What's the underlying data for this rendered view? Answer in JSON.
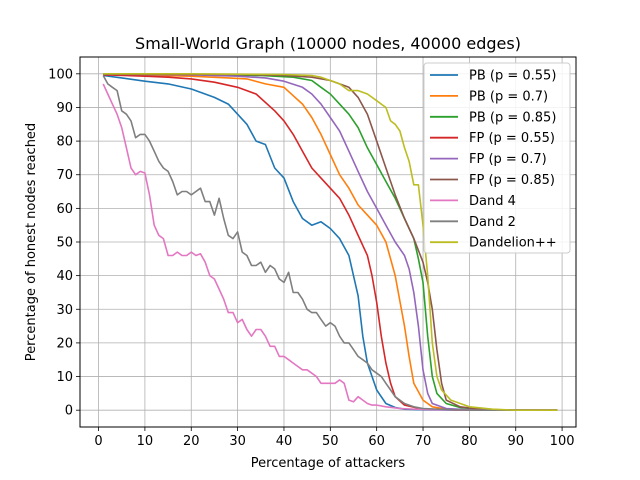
{
  "chart_data": {
    "type": "line",
    "title": "Small-World Graph (10000 nodes, 40000 edges)",
    "xlabel": "Percentage of attackers",
    "ylabel": "Percentage of honest nodes reached",
    "xlim": [
      -4,
      103
    ],
    "ylim": [
      -5,
      105
    ],
    "xticks": [
      0,
      10,
      20,
      30,
      40,
      50,
      60,
      70,
      80,
      90,
      100
    ],
    "yticks": [
      0,
      10,
      20,
      30,
      40,
      50,
      60,
      70,
      80,
      90,
      100
    ],
    "grid": true,
    "legend_position": "top-right",
    "series": [
      {
        "name": "PB (p = 0.55)",
        "color": "#1f77b4",
        "points": [
          [
            1,
            99.5
          ],
          [
            5,
            98.8
          ],
          [
            10,
            97.8
          ],
          [
            15,
            97
          ],
          [
            20,
            95.5
          ],
          [
            25,
            93
          ],
          [
            28,
            91
          ],
          [
            30,
            88
          ],
          [
            32,
            85
          ],
          [
            34,
            80
          ],
          [
            36,
            79
          ],
          [
            38,
            72
          ],
          [
            40,
            69
          ],
          [
            42,
            62
          ],
          [
            44,
            57
          ],
          [
            46,
            55
          ],
          [
            48,
            56
          ],
          [
            50,
            54
          ],
          [
            52,
            51
          ],
          [
            54,
            46
          ],
          [
            56,
            34
          ],
          [
            57,
            22
          ],
          [
            58,
            14
          ],
          [
            60,
            6
          ],
          [
            62,
            2
          ],
          [
            64,
            0.8
          ],
          [
            66,
            0.3
          ],
          [
            70,
            0.1
          ],
          [
            80,
            0
          ],
          [
            99,
            0
          ]
        ]
      },
      {
        "name": "PB (p = 0.7)",
        "color": "#ff7f0e",
        "points": [
          [
            1,
            99.8
          ],
          [
            10,
            99.6
          ],
          [
            20,
            99.3
          ],
          [
            28,
            98.8
          ],
          [
            32,
            98.5
          ],
          [
            36,
            97
          ],
          [
            40,
            96
          ],
          [
            42,
            93.5
          ],
          [
            44,
            91
          ],
          [
            46,
            87
          ],
          [
            48,
            82
          ],
          [
            50,
            76
          ],
          [
            52,
            70
          ],
          [
            54,
            66
          ],
          [
            56,
            61
          ],
          [
            58,
            58
          ],
          [
            60,
            55
          ],
          [
            62,
            50
          ],
          [
            64,
            40
          ],
          [
            66,
            25
          ],
          [
            67,
            16
          ],
          [
            68,
            8
          ],
          [
            70,
            3
          ],
          [
            72,
            1
          ],
          [
            75,
            0.3
          ],
          [
            80,
            0
          ],
          [
            99,
            0
          ]
        ]
      },
      {
        "name": "PB (p = 0.85)",
        "color": "#2ca02c",
        "points": [
          [
            1,
            99.9
          ],
          [
            20,
            99.8
          ],
          [
            35,
            99.5
          ],
          [
            42,
            99
          ],
          [
            46,
            98
          ],
          [
            48,
            96
          ],
          [
            50,
            94
          ],
          [
            52,
            91
          ],
          [
            54,
            88
          ],
          [
            56,
            84
          ],
          [
            58,
            78
          ],
          [
            60,
            73
          ],
          [
            62,
            68
          ],
          [
            64,
            63
          ],
          [
            66,
            57
          ],
          [
            68,
            51
          ],
          [
            69,
            45
          ],
          [
            70,
            38
          ],
          [
            71,
            22
          ],
          [
            72,
            10
          ],
          [
            73,
            5
          ],
          [
            75,
            2
          ],
          [
            78,
            0.8
          ],
          [
            82,
            0.2
          ],
          [
            90,
            0
          ],
          [
            99,
            0
          ]
        ]
      },
      {
        "name": "FP (p = 0.55)",
        "color": "#d62728",
        "points": [
          [
            1,
            99.7
          ],
          [
            10,
            99.3
          ],
          [
            15,
            99
          ],
          [
            20,
            98.5
          ],
          [
            25,
            97.5
          ],
          [
            30,
            96
          ],
          [
            34,
            94
          ],
          [
            38,
            89
          ],
          [
            40,
            86
          ],
          [
            42,
            82
          ],
          [
            44,
            77
          ],
          [
            46,
            72
          ],
          [
            48,
            69
          ],
          [
            50,
            66
          ],
          [
            52,
            63
          ],
          [
            54,
            58
          ],
          [
            56,
            52
          ],
          [
            58,
            46
          ],
          [
            59,
            40
          ],
          [
            60,
            32
          ],
          [
            61,
            22
          ],
          [
            62,
            14
          ],
          [
            63,
            8
          ],
          [
            64,
            4
          ],
          [
            66,
            1.5
          ],
          [
            70,
            0.3
          ],
          [
            80,
            0
          ],
          [
            99,
            0
          ]
        ]
      },
      {
        "name": "FP (p = 0.7)",
        "color": "#9467bd",
        "points": [
          [
            1,
            99.9
          ],
          [
            20,
            99.7
          ],
          [
            30,
            99.3
          ],
          [
            36,
            98.8
          ],
          [
            40,
            97.8
          ],
          [
            44,
            96
          ],
          [
            46,
            94
          ],
          [
            48,
            91
          ],
          [
            50,
            87
          ],
          [
            52,
            83
          ],
          [
            54,
            77
          ],
          [
            56,
            71
          ],
          [
            58,
            65
          ],
          [
            60,
            60
          ],
          [
            62,
            55
          ],
          [
            64,
            50
          ],
          [
            66,
            46
          ],
          [
            67,
            42
          ],
          [
            68,
            35
          ],
          [
            69,
            25
          ],
          [
            70,
            12
          ],
          [
            71,
            5
          ],
          [
            72,
            2
          ],
          [
            75,
            0.5
          ],
          [
            80,
            0.1
          ],
          [
            99,
            0
          ]
        ]
      },
      {
        "name": "FP (p = 0.85)",
        "color": "#8c564b",
        "points": [
          [
            1,
            99.9
          ],
          [
            30,
            99.8
          ],
          [
            40,
            99.5
          ],
          [
            46,
            99
          ],
          [
            50,
            98
          ],
          [
            54,
            96
          ],
          [
            56,
            93
          ],
          [
            58,
            88
          ],
          [
            60,
            80
          ],
          [
            62,
            72
          ],
          [
            64,
            64
          ],
          [
            66,
            57
          ],
          [
            68,
            51
          ],
          [
            70,
            44
          ],
          [
            71,
            38
          ],
          [
            72,
            30
          ],
          [
            73,
            18
          ],
          [
            74,
            8
          ],
          [
            75,
            3
          ],
          [
            78,
            1
          ],
          [
            82,
            0.3
          ],
          [
            90,
            0
          ],
          [
            99,
            0
          ]
        ]
      },
      {
        "name": "Dand 4",
        "color": "#e377c2",
        "points": [
          [
            1,
            97
          ],
          [
            2,
            94
          ],
          [
            3,
            91
          ],
          [
            4,
            88
          ],
          [
            5,
            84
          ],
          [
            6,
            78
          ],
          [
            7,
            72
          ],
          [
            8,
            70
          ],
          [
            9,
            71
          ],
          [
            10,
            70.5
          ],
          [
            11,
            64
          ],
          [
            12,
            55
          ],
          [
            13,
            52
          ],
          [
            14,
            51
          ],
          [
            15,
            46
          ],
          [
            16,
            46
          ],
          [
            17,
            47
          ],
          [
            18,
            46
          ],
          [
            19,
            46
          ],
          [
            20,
            47
          ],
          [
            21,
            46
          ],
          [
            22,
            46.5
          ],
          [
            23,
            44
          ],
          [
            24,
            40
          ],
          [
            25,
            39
          ],
          [
            26,
            36
          ],
          [
            27,
            33
          ],
          [
            28,
            29
          ],
          [
            29,
            29
          ],
          [
            30,
            26
          ],
          [
            31,
            27
          ],
          [
            32,
            24
          ],
          [
            33,
            22
          ],
          [
            34,
            24
          ],
          [
            35,
            24
          ],
          [
            36,
            22
          ],
          [
            37,
            19
          ],
          [
            38,
            19
          ],
          [
            39,
            16
          ],
          [
            40,
            16
          ],
          [
            41,
            15
          ],
          [
            42,
            14
          ],
          [
            43,
            13
          ],
          [
            44,
            12
          ],
          [
            45,
            12
          ],
          [
            46,
            11
          ],
          [
            47,
            10
          ],
          [
            48,
            8
          ],
          [
            49,
            8
          ],
          [
            50,
            8
          ],
          [
            51,
            8
          ],
          [
            52,
            9
          ],
          [
            53,
            8
          ],
          [
            54,
            3
          ],
          [
            55,
            2.5
          ],
          [
            56,
            4
          ],
          [
            57,
            3
          ],
          [
            58,
            2
          ],
          [
            59,
            1.5
          ],
          [
            60,
            1.5
          ],
          [
            62,
            1
          ],
          [
            65,
            0.5
          ],
          [
            70,
            0.2
          ],
          [
            80,
            0
          ],
          [
            99,
            0
          ]
        ]
      },
      {
        "name": "Dand 2",
        "color": "#7f7f7f",
        "points": [
          [
            1,
            99.5
          ],
          [
            2,
            97
          ],
          [
            3,
            96
          ],
          [
            4,
            95
          ],
          [
            5,
            89
          ],
          [
            6,
            88
          ],
          [
            7,
            86
          ],
          [
            8,
            81
          ],
          [
            9,
            82
          ],
          [
            10,
            82
          ],
          [
            11,
            80
          ],
          [
            12,
            77
          ],
          [
            13,
            74
          ],
          [
            14,
            72
          ],
          [
            15,
            71
          ],
          [
            16,
            68
          ],
          [
            17,
            64
          ],
          [
            18,
            65
          ],
          [
            19,
            65
          ],
          [
            20,
            64
          ],
          [
            21,
            65
          ],
          [
            22,
            66
          ],
          [
            23,
            62
          ],
          [
            24,
            62
          ],
          [
            25,
            58
          ],
          [
            26,
            63
          ],
          [
            27,
            57
          ],
          [
            28,
            52
          ],
          [
            29,
            51
          ],
          [
            30,
            53
          ],
          [
            31,
            47
          ],
          [
            32,
            46
          ],
          [
            33,
            43
          ],
          [
            34,
            43
          ],
          [
            35,
            44
          ],
          [
            36,
            41
          ],
          [
            37,
            43
          ],
          [
            38,
            42
          ],
          [
            39,
            39
          ],
          [
            40,
            38
          ],
          [
            41,
            41
          ],
          [
            42,
            35
          ],
          [
            43,
            35
          ],
          [
            44,
            33
          ],
          [
            45,
            30
          ],
          [
            46,
            29
          ],
          [
            47,
            29
          ],
          [
            48,
            27
          ],
          [
            49,
            25
          ],
          [
            50,
            26
          ],
          [
            51,
            25
          ],
          [
            52,
            22
          ],
          [
            53,
            20
          ],
          [
            54,
            20
          ],
          [
            55,
            18
          ],
          [
            56,
            16
          ],
          [
            57,
            15
          ],
          [
            58,
            14
          ],
          [
            59,
            12
          ],
          [
            60,
            11
          ],
          [
            61,
            10
          ],
          [
            62,
            8
          ],
          [
            63,
            6
          ],
          [
            64,
            4
          ],
          [
            65,
            3
          ],
          [
            66,
            2
          ],
          [
            67,
            1.5
          ],
          [
            68,
            1
          ],
          [
            70,
            0.5
          ],
          [
            75,
            0.2
          ],
          [
            80,
            0
          ],
          [
            99,
            0
          ]
        ]
      },
      {
        "name": "Dandelion++",
        "color": "#bcbd22",
        "points": [
          [
            1,
            100
          ],
          [
            20,
            100
          ],
          [
            40,
            99.8
          ],
          [
            46,
            99.5
          ],
          [
            48,
            99
          ],
          [
            50,
            98
          ],
          [
            52,
            97
          ],
          [
            54,
            95
          ],
          [
            56,
            95
          ],
          [
            58,
            94
          ],
          [
            60,
            92
          ],
          [
            61,
            91
          ],
          [
            62,
            90
          ],
          [
            63,
            86
          ],
          [
            64,
            85
          ],
          [
            65,
            83
          ],
          [
            66,
            78
          ],
          [
            67,
            74
          ],
          [
            68,
            67
          ],
          [
            69,
            67
          ],
          [
            70,
            55
          ],
          [
            71,
            40
          ],
          [
            72,
            20
          ],
          [
            73,
            10
          ],
          [
            74,
            6
          ],
          [
            76,
            3
          ],
          [
            80,
            1
          ],
          [
            85,
            0.3
          ],
          [
            90,
            0
          ],
          [
            99,
            0
          ]
        ]
      }
    ]
  }
}
